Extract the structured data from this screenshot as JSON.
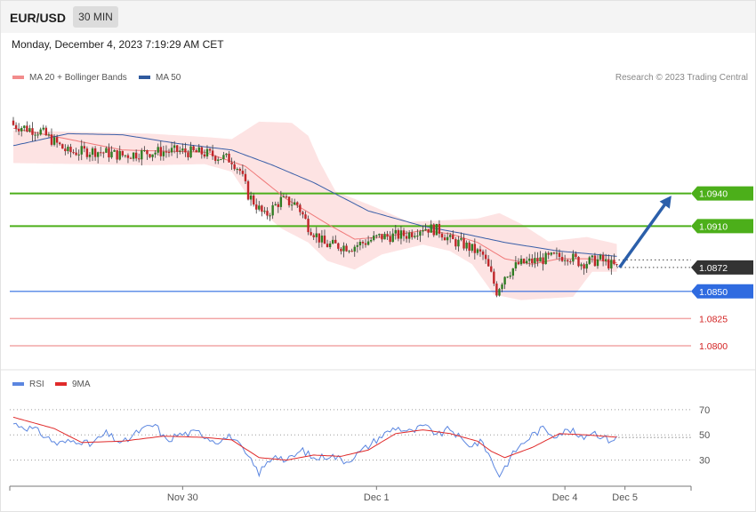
{
  "header": {
    "symbol": "EUR/USD",
    "timeframe": "30 MIN",
    "datetime": "Monday, December 4, 2023 7:19:29 AM CET"
  },
  "legend": {
    "ma20_label": "MA 20 + Bollinger Bands",
    "ma50_label": "MA 50",
    "copyright": "Research © 2023 Trading Central",
    "rsi_label": "RSI",
    "rsi9_label": "9MA"
  },
  "colors": {
    "ma20": "#f07a7a",
    "ma50": "#3a5fa8",
    "bollinger_fill": "#fde3e3",
    "candle_up": "#2f7d23",
    "candle_down": "#c0262a",
    "resistance": "#4caf1a",
    "pivot": "#2f6be0",
    "support": "#f2a6a6",
    "last_price": "#333333",
    "target_arrow": "#2b5faa",
    "rsi": "#5b86e0",
    "rsi_ma": "#e02a2a"
  },
  "chart_data": [
    {
      "type": "candlestick",
      "title": "EUR/USD",
      "timeframe": "30 MIN",
      "ylim": [
        1.0782,
        1.1037
      ],
      "x_ticks": [
        {
          "label": "Nov 30",
          "bar": 62
        },
        {
          "label": "Dec 1",
          "bar": 133
        },
        {
          "label": "Dec 4",
          "bar": 202
        },
        {
          "label": "Dec 5",
          "bar": 224
        }
      ],
      "levels": [
        {
          "value": 1.094,
          "label": "1.0940",
          "kind": "resistance"
        },
        {
          "value": 1.091,
          "label": "1.0910",
          "kind": "resistance"
        },
        {
          "value": 1.0872,
          "label": "1.0872",
          "kind": "last"
        },
        {
          "value": 1.085,
          "label": "1.0850",
          "kind": "pivot"
        },
        {
          "value": 1.0825,
          "label": "1.0825",
          "kind": "support"
        },
        {
          "value": 1.08,
          "label": "1.0800",
          "kind": "support"
        }
      ],
      "close_anchors": [
        [
          0,
          1.1003
        ],
        [
          10,
          1.0997
        ],
        [
          20,
          1.0978
        ],
        [
          30,
          1.0979
        ],
        [
          40,
          1.0975
        ],
        [
          50,
          1.0978
        ],
        [
          60,
          1.0979
        ],
        [
          70,
          1.0977
        ],
        [
          80,
          1.0971
        ],
        [
          83,
          1.0961
        ],
        [
          86,
          1.0939
        ],
        [
          92,
          1.0919
        ],
        [
          98,
          1.0934
        ],
        [
          104,
          1.093
        ],
        [
          108,
          1.091
        ],
        [
          114,
          1.0893
        ],
        [
          124,
          1.0891
        ],
        [
          134,
          1.09
        ],
        [
          144,
          1.0902
        ],
        [
          150,
          1.0909
        ],
        [
          156,
          1.0906
        ],
        [
          160,
          1.0897
        ],
        [
          165,
          1.0893
        ],
        [
          172,
          1.0883
        ],
        [
          175,
          1.0865
        ],
        [
          177,
          1.085
        ],
        [
          180,
          1.0865
        ],
        [
          185,
          1.0875
        ],
        [
          191,
          1.0878
        ],
        [
          197,
          1.0881
        ],
        [
          203,
          1.0883
        ],
        [
          208,
          1.0876
        ],
        [
          215,
          1.0879
        ],
        [
          221,
          1.0872
        ]
      ],
      "ma20_anchors": [
        [
          0,
          1.1
        ],
        [
          40,
          1.098
        ],
        [
          70,
          1.0978
        ],
        [
          85,
          1.0965
        ],
        [
          100,
          1.0935
        ],
        [
          115,
          1.0912
        ],
        [
          125,
          1.0898
        ],
        [
          135,
          1.09
        ],
        [
          150,
          1.0906
        ],
        [
          160,
          1.0903
        ],
        [
          170,
          1.0895
        ],
        [
          180,
          1.088
        ],
        [
          190,
          1.0875
        ],
        [
          200,
          1.088
        ],
        [
          210,
          1.088
        ],
        [
          222,
          1.0876
        ]
      ],
      "ma50_anchors": [
        [
          0,
          1.0984
        ],
        [
          20,
          1.0995
        ],
        [
          40,
          1.0994
        ],
        [
          60,
          1.0986
        ],
        [
          80,
          1.098
        ],
        [
          95,
          1.0966
        ],
        [
          110,
          1.095
        ],
        [
          130,
          1.0924
        ],
        [
          150,
          1.091
        ],
        [
          165,
          1.0903
        ],
        [
          180,
          1.0895
        ],
        [
          200,
          1.0887
        ],
        [
          222,
          1.0882
        ]
      ],
      "bollinger_upper": [
        [
          0,
          1.0998
        ],
        [
          50,
          1.0995
        ],
        [
          70,
          1.0992
        ],
        [
          80,
          1.099
        ],
        [
          90,
          1.1006
        ],
        [
          102,
          1.1005
        ],
        [
          108,
          1.0993
        ],
        [
          112,
          1.097
        ],
        [
          118,
          1.0942
        ],
        [
          130,
          1.093
        ],
        [
          145,
          1.0914
        ],
        [
          155,
          1.0915
        ],
        [
          170,
          1.0917
        ],
        [
          178,
          1.0922
        ],
        [
          186,
          1.0912
        ],
        [
          196,
          1.0896
        ],
        [
          210,
          1.09
        ],
        [
          222,
          1.0893
        ]
      ],
      "bollinger_lower": [
        [
          0,
          1.0968
        ],
        [
          50,
          1.0966
        ],
        [
          70,
          1.0967
        ],
        [
          80,
          1.096
        ],
        [
          88,
          1.093
        ],
        [
          98,
          1.0908
        ],
        [
          108,
          1.0895
        ],
        [
          115,
          1.0878
        ],
        [
          125,
          1.087
        ],
        [
          135,
          1.0884
        ],
        [
          150,
          1.0893
        ],
        [
          160,
          1.0887
        ],
        [
          168,
          1.0875
        ],
        [
          176,
          1.0847
        ],
        [
          186,
          1.0842
        ],
        [
          205,
          1.0845
        ],
        [
          212,
          1.0868
        ],
        [
          222,
          1.0868
        ]
      ],
      "target_arrow": {
        "from_bar": 222,
        "from_value": 1.0872,
        "to_bar": 241,
        "to_value": 1.0938
      }
    },
    {
      "type": "line",
      "title": "RSI",
      "ylim": [
        10,
        84
      ],
      "y_ticks": [
        30,
        50,
        70
      ],
      "series": [
        {
          "name": "RSI",
          "anchors": [
            [
              0,
              59
            ],
            [
              8,
              54
            ],
            [
              16,
              43
            ],
            [
              24,
              46
            ],
            [
              28,
              42
            ],
            [
              34,
              51
            ],
            [
              40,
              43
            ],
            [
              46,
              53
            ],
            [
              52,
              58
            ],
            [
              56,
              45
            ],
            [
              60,
              50
            ],
            [
              68,
              52
            ],
            [
              74,
              45
            ],
            [
              80,
              49
            ],
            [
              86,
              32
            ],
            [
              90,
              20
            ],
            [
              96,
              35
            ],
            [
              100,
              29
            ],
            [
              106,
              38
            ],
            [
              110,
              31
            ],
            [
              116,
              34
            ],
            [
              122,
              29
            ],
            [
              128,
              38
            ],
            [
              134,
              48
            ],
            [
              140,
              56
            ],
            [
              146,
              52
            ],
            [
              150,
              57
            ],
            [
              156,
              50
            ],
            [
              160,
              55
            ],
            [
              166,
              42
            ],
            [
              172,
              44
            ],
            [
              176,
              26
            ],
            [
              178,
              18
            ],
            [
              184,
              38
            ],
            [
              190,
              50
            ],
            [
              194,
              55
            ],
            [
              198,
              50
            ],
            [
              204,
              54
            ],
            [
              208,
              47
            ],
            [
              212,
              53
            ],
            [
              218,
              46
            ],
            [
              222,
              48
            ]
          ]
        },
        {
          "name": "9MA",
          "anchors": [
            [
              0,
              64
            ],
            [
              15,
              55
            ],
            [
              25,
              44
            ],
            [
              40,
              45
            ],
            [
              55,
              49
            ],
            [
              70,
              48
            ],
            [
              80,
              46
            ],
            [
              90,
              32
            ],
            [
              100,
              30
            ],
            [
              110,
              34
            ],
            [
              120,
              33
            ],
            [
              130,
              38
            ],
            [
              140,
              51
            ],
            [
              150,
              54
            ],
            [
              160,
              51
            ],
            [
              170,
              45
            ],
            [
              175,
              37
            ],
            [
              180,
              32
            ],
            [
              190,
              40
            ],
            [
              200,
              51
            ],
            [
              210,
              50
            ],
            [
              222,
              48
            ]
          ]
        }
      ]
    }
  ]
}
